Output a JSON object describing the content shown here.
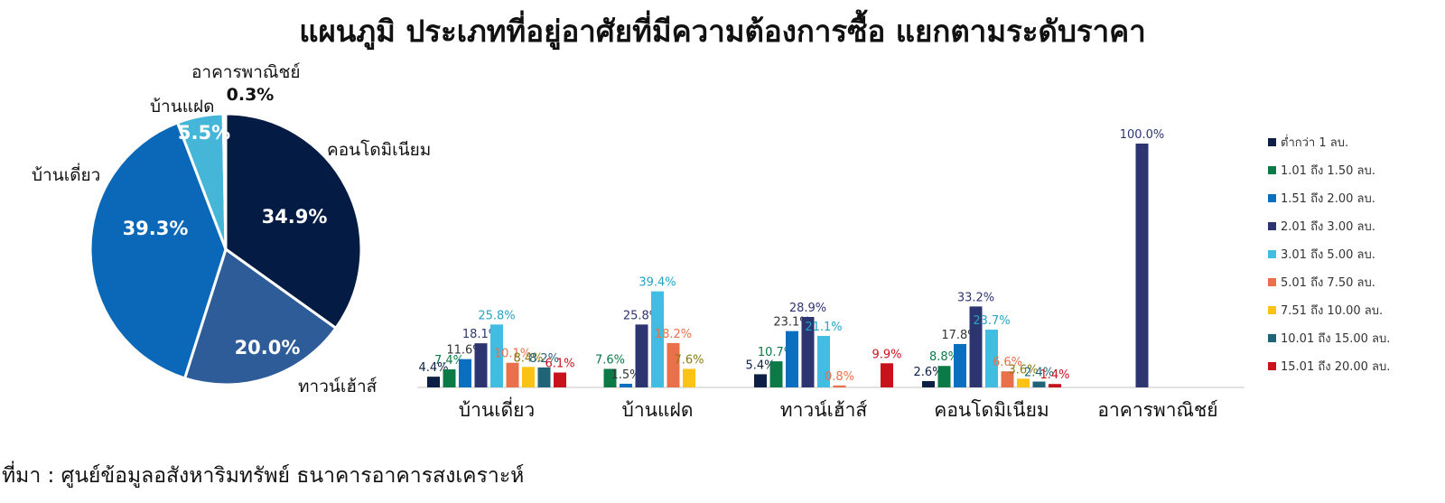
{
  "title": "แผนภูมิ ประเภทที่อยู่อาศัยที่มีความต้องการซื้อ แยกตามระดับราคา",
  "source_note": "ที่มา : ศูนย์ข้อมูลอสังหาริมทรัพย์ ธนาคารอาคารสงเคราะห์",
  "chart_data": [
    {
      "type": "pie",
      "title": "",
      "slices": [
        {
          "label": "คอนโดมิเนียม",
          "value": 34.9,
          "display": "34.9%",
          "color": "#041c44"
        },
        {
          "label": "ทาวน์เฮ้าส์",
          "value": 20.0,
          "display": "20.0%",
          "color": "#2e5c99"
        },
        {
          "label": "บ้านเดี่ยว",
          "value": 39.3,
          "display": "39.3%",
          "color": "#0b68b8"
        },
        {
          "label": "บ้านแฝด",
          "value": 5.5,
          "display": "5.5%",
          "color": "#45b5d8"
        },
        {
          "label": "อาคารพาณิชย์",
          "value": 0.3,
          "display": "0.3%",
          "color": "#0b4a8c"
        }
      ]
    },
    {
      "type": "bar",
      "title": "",
      "categories": [
        "บ้านเดี่ยว",
        "บ้านแฝด",
        "ทาวน์เฮ้าส์",
        "คอนโดมิเนียม",
        "อาคารพาณิชย์"
      ],
      "ylim": [
        0,
        100
      ],
      "grid": false,
      "legend_position": "right",
      "series": [
        {
          "name": "ต่ำกว่า 1 ลบ.",
          "color": "#0d1f45",
          "label_color": "#0d1f45",
          "values": [
            4.4,
            0,
            5.4,
            2.6,
            0
          ],
          "labels": [
            "4.4%",
            "",
            "5.4%",
            "2.6%",
            ""
          ]
        },
        {
          "name": "1.01 ถึง 1.50 ลบ.",
          "color": "#0b7a47",
          "label_color": "#0b7a47",
          "values": [
            7.4,
            7.6,
            10.7,
            8.8,
            0
          ],
          "labels": [
            "7.4%",
            "7.6%",
            "10.7%",
            "8.8%",
            ""
          ]
        },
        {
          "name": "1.51 ถึง 2.00 ลบ.",
          "color": "#0b6fc0",
          "label_color": "#333333",
          "values": [
            11.6,
            1.5,
            23.1,
            17.8,
            0
          ],
          "labels": [
            "11.6%",
            "1.5%",
            "23.1%",
            "17.8%",
            ""
          ]
        },
        {
          "name": "2.01 ถึง 3.00 ลบ.",
          "color": "#2d3571",
          "label_color": "#2d3571",
          "values": [
            18.1,
            25.8,
            28.9,
            33.2,
            100.0
          ],
          "labels": [
            "18.1%",
            "25.8%",
            "28.9%",
            "33.2%",
            "100.0%"
          ]
        },
        {
          "name": "3.01 ถึง 5.00 ลบ.",
          "color": "#40bde0",
          "label_color": "#26a3c4",
          "values": [
            25.8,
            39.4,
            21.1,
            23.7,
            0
          ],
          "labels": [
            "25.8%",
            "39.4%",
            "21.1%",
            "23.7%",
            ""
          ]
        },
        {
          "name": "5.01 ถึง 7.50 ลบ.",
          "color": "#e8704b",
          "label_color": "#e8704b",
          "values": [
            10.1,
            18.2,
            0.8,
            6.6,
            0
          ],
          "labels": [
            "10.1%",
            "18.2%",
            "0.8%",
            "6.6%",
            ""
          ]
        },
        {
          "name": "7.51 ถึง 10.00 ลบ.",
          "color": "#fac316",
          "label_color": "#8a7a12",
          "values": [
            8.4,
            7.6,
            0,
            3.6,
            0
          ],
          "labels": [
            "8.4%",
            "7.6%",
            "",
            "3.6%",
            ""
          ]
        },
        {
          "name": "10.01 ถึง 15.00 ลบ.",
          "color": "#206577",
          "label_color": "#206577",
          "values": [
            8.2,
            0,
            0,
            2.4,
            0
          ],
          "labels": [
            "8.2%",
            "",
            "",
            "2.4%",
            ""
          ]
        },
        {
          "name": "15.01 ถึง 20.00 ลบ.",
          "color": "#c8121c",
          "label_color": "#c8121c",
          "values": [
            6.1,
            0,
            9.9,
            1.4,
            0
          ],
          "labels": [
            "6.1%",
            "",
            "9.9%",
            "1.4%",
            ""
          ]
        }
      ]
    }
  ]
}
